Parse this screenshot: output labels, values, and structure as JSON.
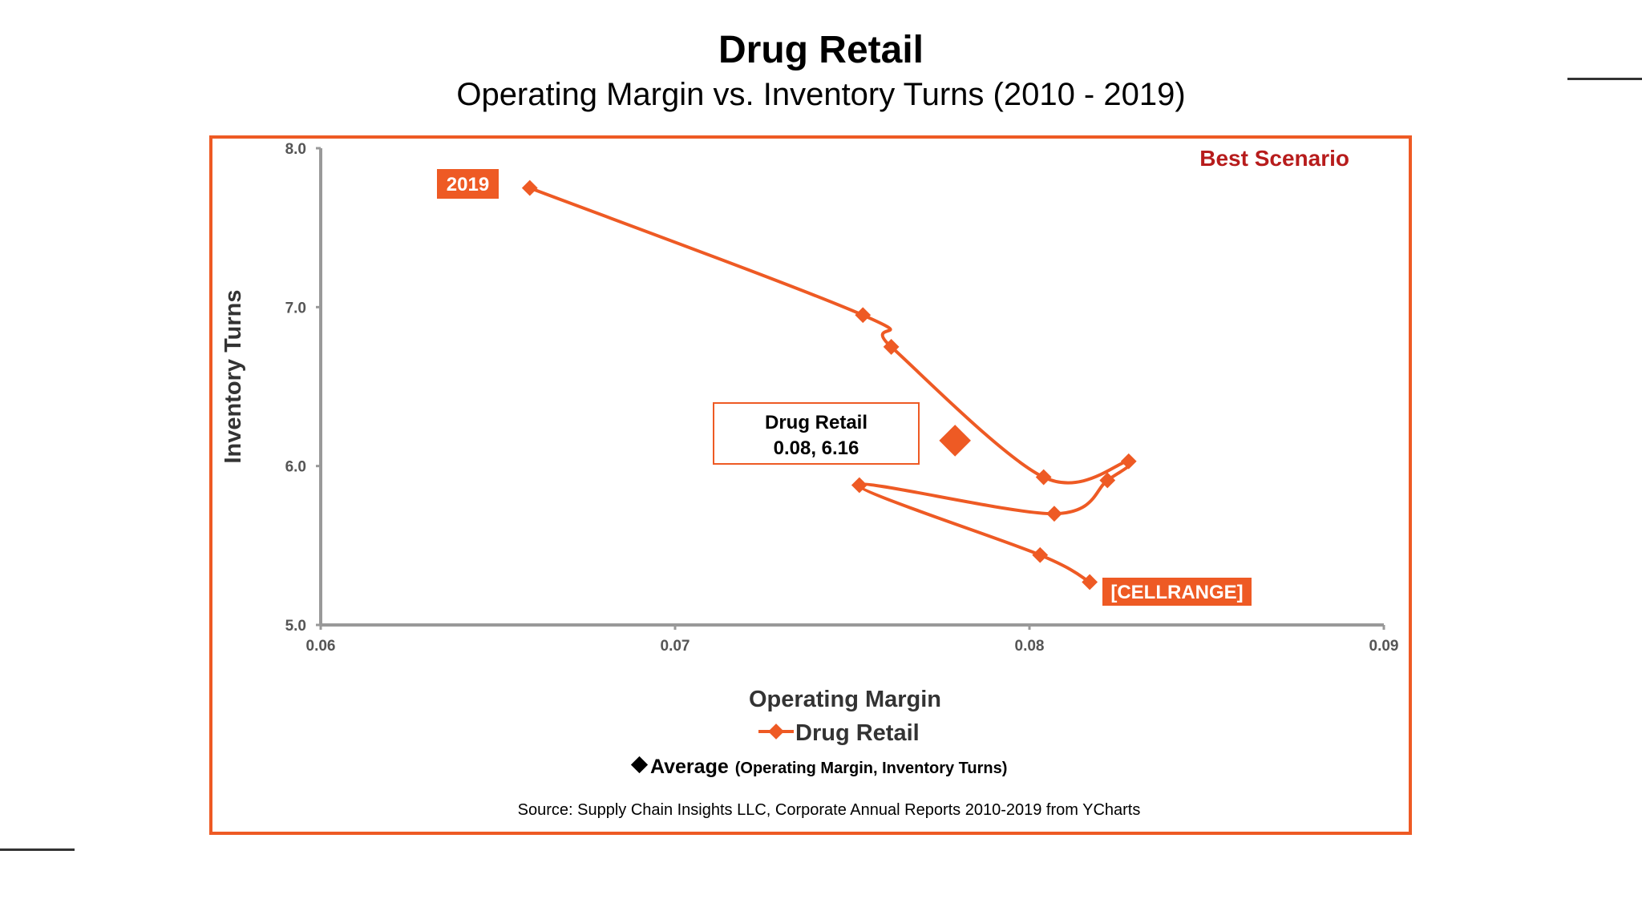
{
  "colors": {
    "accent": "#ee5a24",
    "best": "#b71c1c",
    "axis": "#999999"
  },
  "chart_data": {
    "type": "line",
    "title": "Drug Retail",
    "subtitle": "Operating Margin vs. Inventory Turns (2010 - 2019)",
    "xlabel": "Operating Margin",
    "ylabel": "Inventory Turns",
    "xlim": [
      0.06,
      0.09
    ],
    "ylim": [
      5.0,
      8.0
    ],
    "x_ticks": [
      "0.06",
      "0.07",
      "0.08",
      "0.09"
    ],
    "y_ticks": [
      "5.0",
      "6.0",
      "7.0",
      "8.0"
    ],
    "series": [
      {
        "name": "Drug Retail",
        "points": [
          {
            "x": 0.0817,
            "y": 5.27
          },
          {
            "x": 0.0803,
            "y": 5.44
          },
          {
            "x": 0.0752,
            "y": 5.88
          },
          {
            "x": 0.0807,
            "y": 5.7
          },
          {
            "x": 0.0822,
            "y": 5.91
          },
          {
            "x": 0.0828,
            "y": 6.03
          },
          {
            "x": 0.0804,
            "y": 5.93
          },
          {
            "x": 0.0761,
            "y": 6.75
          },
          {
            "x": 0.0753,
            "y": 6.95
          },
          {
            "x": 0.0659,
            "y": 7.75
          }
        ]
      }
    ],
    "average": {
      "x": 0.0779,
      "y": 6.16
    },
    "average_callout": {
      "line1": "Drug Retail",
      "line2": "0.08, 6.16"
    },
    "label_end": "2019",
    "label_start": "[CELLRANGE]",
    "best_scenario": "Best Scenario",
    "legend": {
      "series_label": "Drug Retail",
      "average_label": "Average",
      "average_note": "(Operating Margin, Inventory Turns)"
    },
    "source": "Source:  Supply Chain Insights LLC, Corporate Annual Reports 2010-2019 from YCharts"
  }
}
